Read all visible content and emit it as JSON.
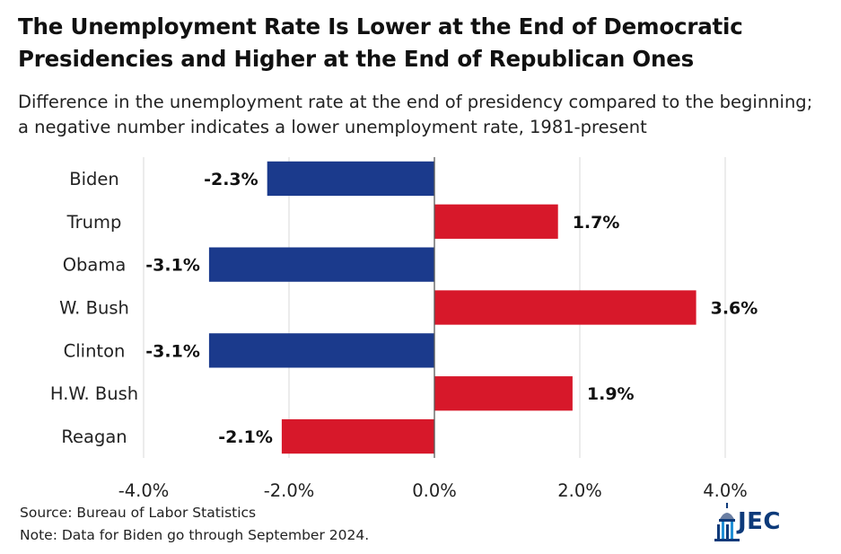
{
  "title": "The Unemployment Rate Is Lower at the End of Democratic Presidencies and Higher at the End of Republican Ones",
  "subtitle": "Difference in the unemployment rate at the end of presidency compared to the beginning; a negative number indicates a lower unemployment rate, 1981-present",
  "source": "Source: Bureau of Labor Statistics",
  "note": "Note: Data for Biden go through September 2024.",
  "logo_text": "JEC",
  "colors": {
    "democrat": "#1b3a8c",
    "republican": "#d7182a",
    "axis": "#595959",
    "grid": "#d9d9d9"
  },
  "chart_data": {
    "type": "bar",
    "orientation": "horizontal",
    "categories": [
      "Biden",
      "Trump",
      "Obama",
      "W. Bush",
      "Clinton",
      "H.W. Bush",
      "Reagan"
    ],
    "values": [
      -2.3,
      1.7,
      -3.1,
      3.6,
      -3.1,
      1.9,
      -2.1
    ],
    "value_labels": [
      "-2.3%",
      "1.7%",
      "-3.1%",
      "3.6%",
      "-3.1%",
      "1.9%",
      "-2.1%"
    ],
    "party": [
      "democrat",
      "republican",
      "democrat",
      "republican",
      "democrat",
      "republican",
      "republican"
    ],
    "xlim": [
      -4.0,
      4.0
    ],
    "xticks": [
      -4.0,
      -2.0,
      0.0,
      2.0,
      4.0
    ],
    "xtick_labels": [
      "-4.0%",
      "-2.0%",
      "0.0%",
      "2.0%",
      "4.0%"
    ],
    "grid": true,
    "legend": "none"
  }
}
